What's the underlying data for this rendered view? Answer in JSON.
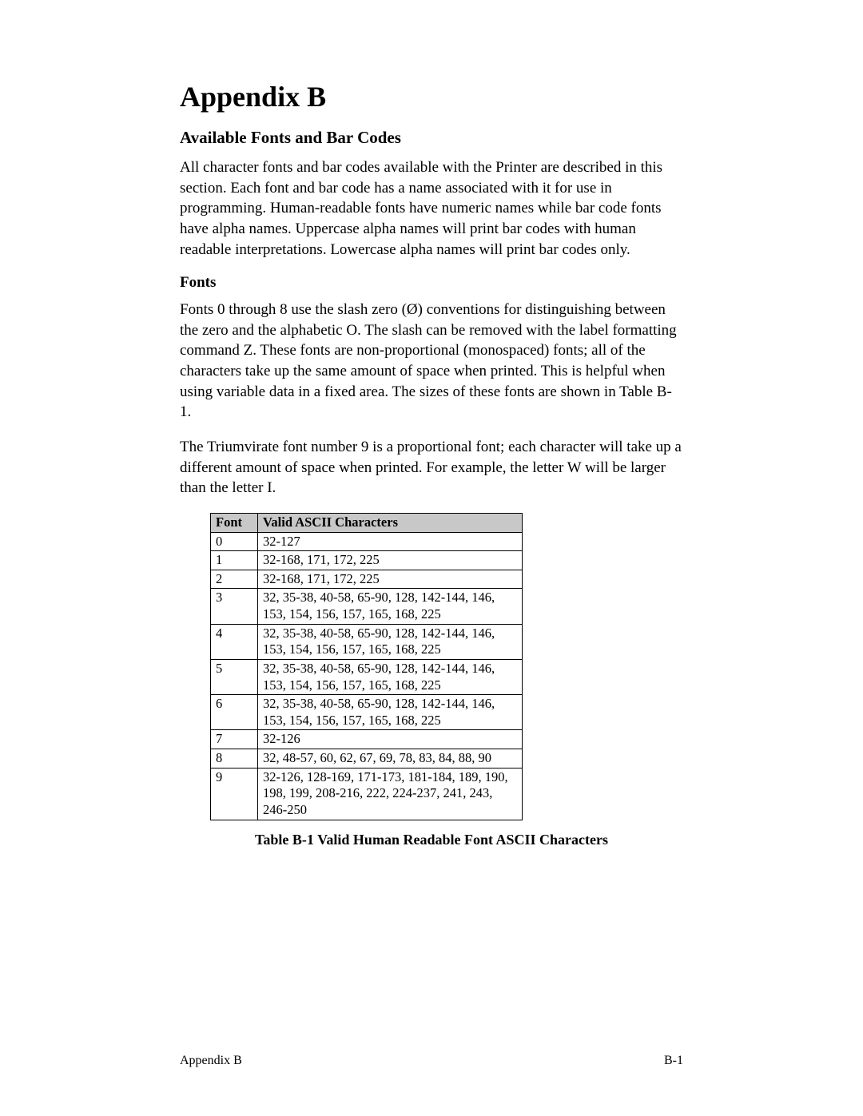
{
  "title": "Appendix B",
  "subtitle": "Available Fonts and Bar Codes",
  "intro": "All character fonts and bar codes available with the Printer are described in this section.  Each font and bar code has a name associated with it for use in programming.  Human-readable fonts have numeric names while bar code fonts have alpha names.  Uppercase alpha names will print bar codes with human readable interpretations.  Lowercase alpha names will print bar codes only.",
  "fonts_heading": "Fonts",
  "fonts_para1": "Fonts 0 through 8 use the slash zero (Ø) conventions for distinguishing between the zero and the alphabetic O.  The slash can be removed with the label formatting command Z.  These fonts are non-proportional (monospaced) fonts; all of the characters take up the same amount of space when printed.  This is helpful when using variable data in a fixed area.  The sizes of these fonts are shown in Table B-1.",
  "fonts_para2": "The Triumvirate font number 9 is a proportional font; each character will take up a different amount of space when printed.  For example, the letter W will be larger than the letter I.",
  "table": {
    "columns": [
      "Font",
      "Valid ASCII Characters"
    ],
    "rows": [
      [
        "0",
        "32-127"
      ],
      [
        "1",
        "32-168, 171, 172, 225"
      ],
      [
        "2",
        "32-168, 171, 172, 225"
      ],
      [
        "3",
        "32, 35-38, 40-58, 65-90, 128, 142-144, 146, 153, 154, 156, 157, 165, 168, 225"
      ],
      [
        "4",
        "32, 35-38, 40-58, 65-90, 128, 142-144, 146, 153, 154, 156, 157, 165, 168, 225"
      ],
      [
        "5",
        "32, 35-38, 40-58, 65-90, 128, 142-144, 146, 153, 154, 156, 157, 165, 168, 225"
      ],
      [
        "6",
        "32, 35-38, 40-58, 65-90, 128, 142-144, 146, 153, 154, 156, 157, 165, 168, 225"
      ],
      [
        "7",
        "32-126"
      ],
      [
        "8",
        "32, 48-57, 60, 62, 67, 69, 78, 83, 84, 88, 90"
      ],
      [
        "9",
        "32-126, 128-169, 171-173, 181-184, 189, 190, 198, 199, 208-216, 222, 224-237, 241, 243, 246-250"
      ]
    ],
    "header_bg": "#c8c8c8"
  },
  "caption": "Table B-1   Valid Human Readable Font ASCII Characters",
  "footer_left": "Appendix B",
  "footer_right": "B-1"
}
